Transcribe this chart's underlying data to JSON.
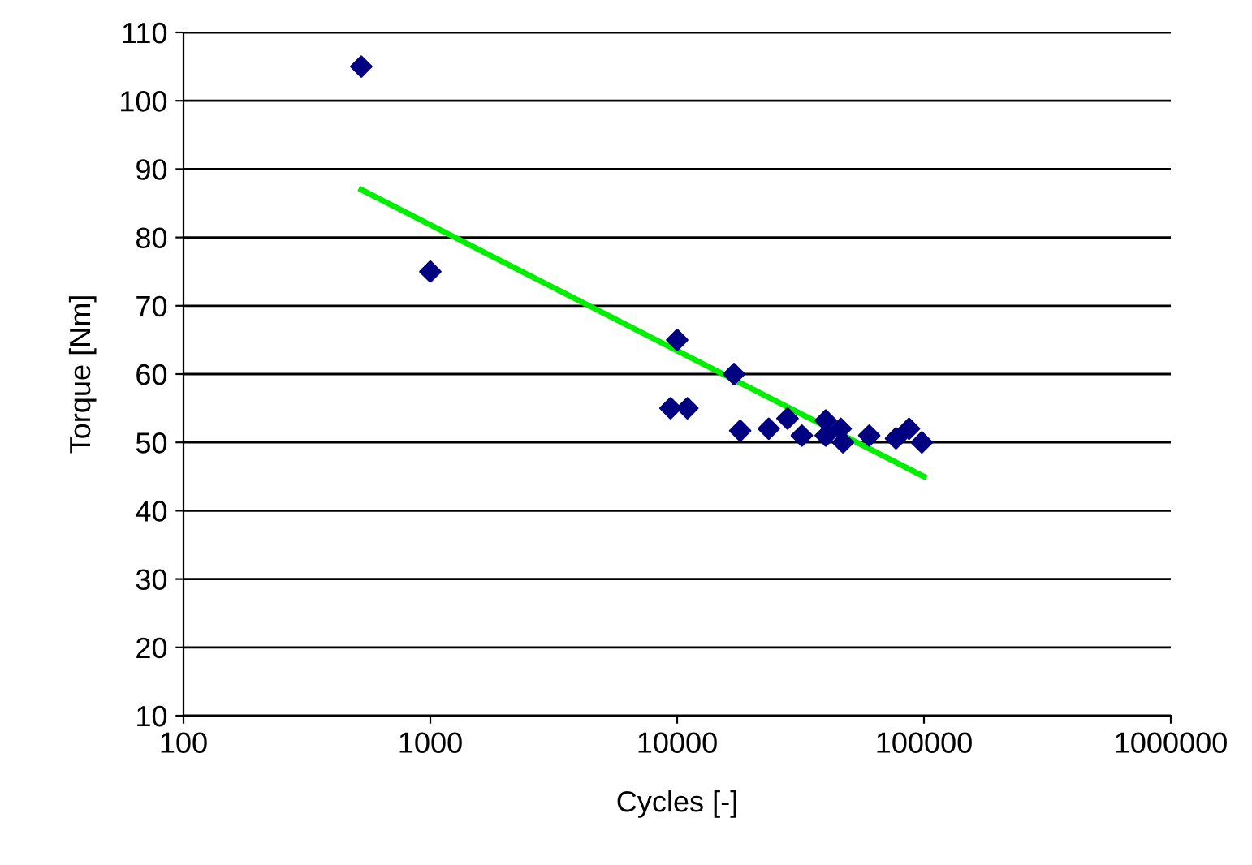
{
  "chart_data": {
    "type": "scatter",
    "xlabel": "Cycles [-]",
    "ylabel": "Torque [Nm]",
    "log": "x",
    "grid": "y",
    "marker": "diamond",
    "xlim": [
      100,
      1000000
    ],
    "xticks": [
      100,
      1000,
      10000,
      100000,
      1000000
    ],
    "ylim": [
      10,
      110
    ],
    "yticks": [
      10,
      20,
      30,
      40,
      50,
      60,
      70,
      80,
      90,
      100,
      110
    ],
    "series": [
      {
        "color": "#000080",
        "x": [
          525,
          1000,
          9400,
          11000,
          10000,
          17000,
          18000,
          23500,
          28000,
          32000,
          40000,
          40000,
          46000,
          47000,
          60000,
          77000,
          87000,
          98000
        ],
        "values": [
          105,
          75,
          55,
          55,
          65,
          60,
          51.7,
          52,
          53.5,
          51,
          53.2,
          51,
          52,
          50,
          51,
          50.6,
          52,
          50
        ]
      },
      {
        "type": "line",
        "color": "#00ee00",
        "marker": "none",
        "x": [
          525,
          100000
        ],
        "values": [
          87,
          45
        ]
      }
    ]
  }
}
